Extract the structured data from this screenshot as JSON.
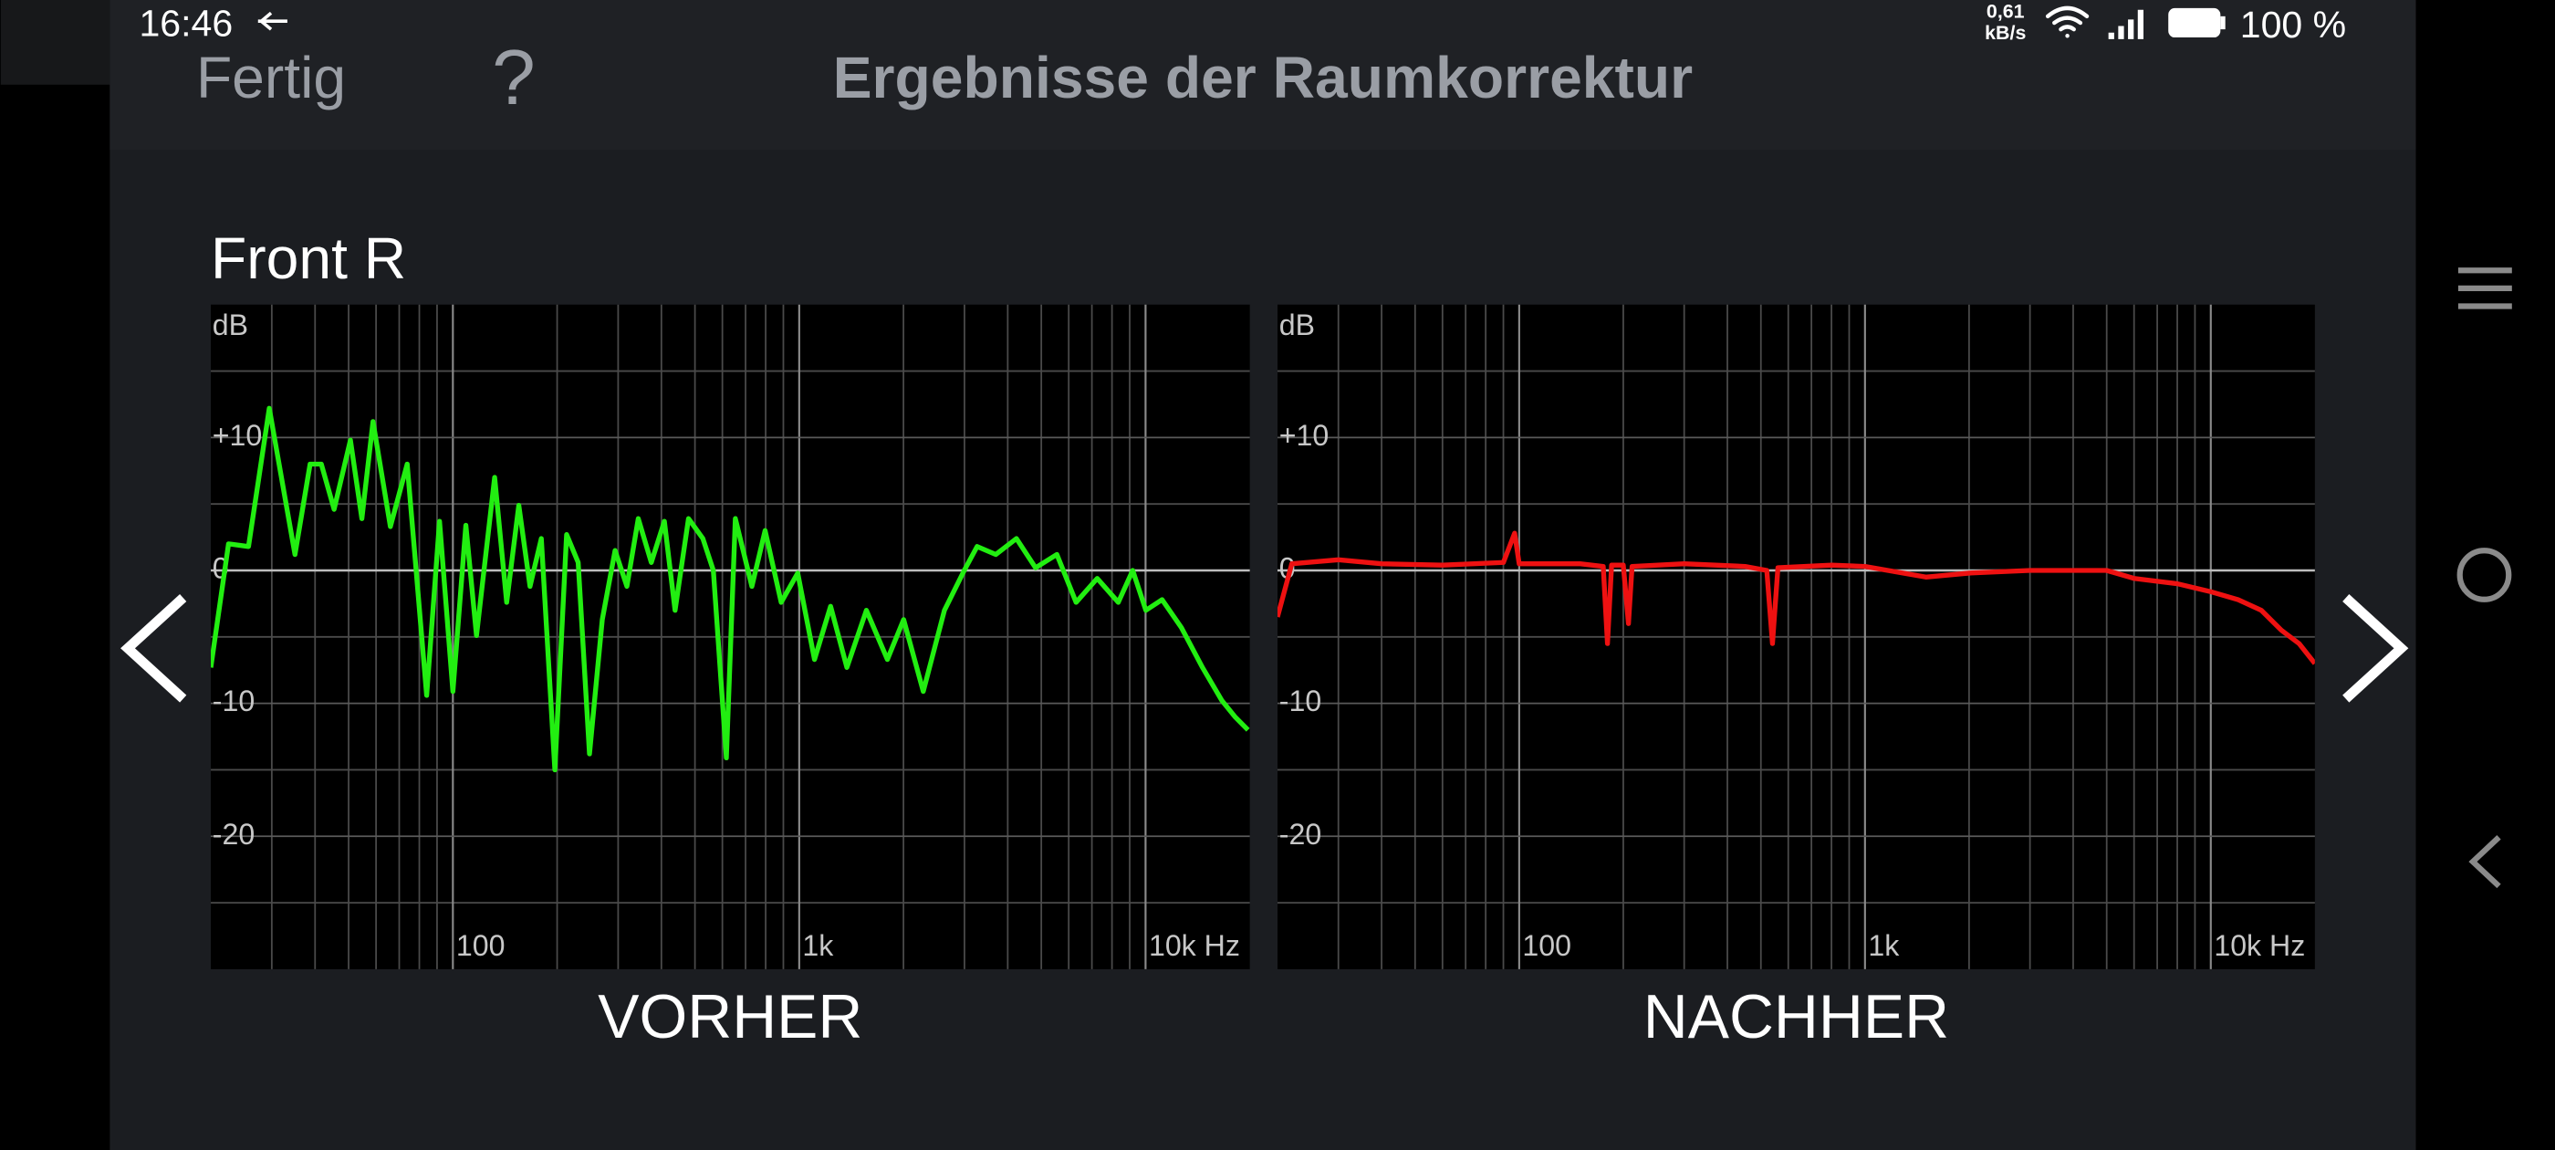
{
  "status_bar": {
    "time": "16:46",
    "net_speed_value": "0,61",
    "net_speed_unit": "kB/s",
    "battery": "100 %"
  },
  "header": {
    "done_button": "Fertig",
    "help_button": "?",
    "title": "Ergebnisse der Raumkorrektur"
  },
  "channel": "Front R",
  "chart_data": [
    {
      "type": "line",
      "y_unit_label": "dB",
      "x_label": "VORHER",
      "xscale": "log",
      "grid": true,
      "xlim": [
        20,
        20000
      ],
      "ylim": [
        -30,
        20
      ],
      "xticks": [
        100,
        {
          "value": 1000,
          "label": "1k"
        },
        {
          "value": 10000,
          "label": "10k Hz"
        }
      ],
      "yticks": [
        {
          "value": 10,
          "label": "+10"
        },
        0,
        -10,
        -20
      ],
      "x_minor_grid": [
        30,
        40,
        50,
        60,
        70,
        80,
        90,
        200,
        300,
        400,
        500,
        600,
        700,
        800,
        900,
        2000,
        3000,
        4000,
        5000,
        6000,
        7000,
        8000,
        9000
      ],
      "y_minor_grid": [
        15,
        5,
        -5,
        -15,
        -25
      ],
      "x": [
        20,
        22.5,
        25.7,
        29.5,
        35,
        38.7,
        41.7,
        45.4,
        50.6,
        54.6,
        58.8,
        66,
        73.8,
        84,
        91.5,
        100,
        109,
        117,
        132,
        143,
        155,
        167,
        180,
        197,
        213,
        230,
        248,
        270,
        294,
        318,
        343,
        374,
        408,
        438,
        479,
        527,
        565,
        616,
        654,
        730,
        797,
        887,
        990,
        1107,
        1232,
        1373,
        1563,
        1797,
        2002,
        2281,
        2626,
        2995,
        3264,
        3696,
        4238,
        4812,
        5545,
        6302,
        7252,
        8342,
        9182,
        10020,
        11160,
        12690,
        14600,
        16620,
        18110,
        19760
      ],
      "series": [
        {
          "color": "#22ee11",
          "values": [
            -7.3,
            2,
            1.8,
            12.2,
            1.2,
            8,
            8,
            4.6,
            9.8,
            3.9,
            11.2,
            3.3,
            8,
            -9.4,
            3.7,
            -9.1,
            3.4,
            -4.9,
            7,
            -2.4,
            4.9,
            -1.2,
            2.4,
            -15,
            2.7,
            0.6,
            -13.8,
            -3.7,
            1.5,
            -1.2,
            3.9,
            0.6,
            3.7,
            -3,
            3.9,
            2.4,
            0,
            -14.1,
            3.9,
            -1.2,
            3,
            -2.4,
            -0.2,
            -6.7,
            -2.7,
            -7.3,
            -3,
            -6.7,
            -3.7,
            -9.1,
            -3,
            0,
            1.8,
            1.2,
            2.4,
            0.2,
            1.2,
            -2.4,
            -0.6,
            -2.4,
            0,
            -3,
            -2.2,
            -4.3,
            -7.3,
            -9.8,
            -11,
            -12
          ]
        }
      ]
    },
    {
      "type": "line",
      "y_unit_label": "dB",
      "x_label": "NACHHER",
      "xscale": "log",
      "grid": true,
      "xlim": [
        20,
        20000
      ],
      "ylim": [
        -30,
        20
      ],
      "xticks": [
        100,
        {
          "value": 1000,
          "label": "1k"
        },
        {
          "value": 10000,
          "label": "10k Hz"
        }
      ],
      "yticks": [
        {
          "value": 10,
          "label": "+10"
        },
        0,
        -10,
        -20
      ],
      "x_minor_grid": [
        30,
        40,
        50,
        60,
        70,
        80,
        90,
        200,
        300,
        400,
        500,
        600,
        700,
        800,
        900,
        2000,
        3000,
        4000,
        5000,
        6000,
        7000,
        8000,
        9000
      ],
      "y_minor_grid": [
        15,
        5,
        -5,
        -15,
        -25
      ],
      "x": [
        20,
        22,
        30,
        40,
        60,
        90,
        97,
        100,
        150,
        175,
        180,
        185,
        200,
        207,
        212,
        300,
        450,
        520,
        540,
        560,
        800,
        1000,
        1500,
        2000,
        3000,
        5000,
        6000,
        8000,
        10000,
        12000,
        14000,
        16000,
        18000,
        20000
      ],
      "series": [
        {
          "color": "#ee1111",
          "values": [
            -3.5,
            0.5,
            0.8,
            0.5,
            0.4,
            0.6,
            2.8,
            0.5,
            0.5,
            0.3,
            -5.5,
            0.4,
            0.4,
            -4,
            0.3,
            0.5,
            0.3,
            0,
            -5.5,
            0.2,
            0.4,
            0.3,
            -0.5,
            -0.2,
            0,
            0,
            -0.6,
            -1,
            -1.6,
            -2.2,
            -3,
            -4.5,
            -5.5,
            -7
          ]
        }
      ]
    }
  ]
}
